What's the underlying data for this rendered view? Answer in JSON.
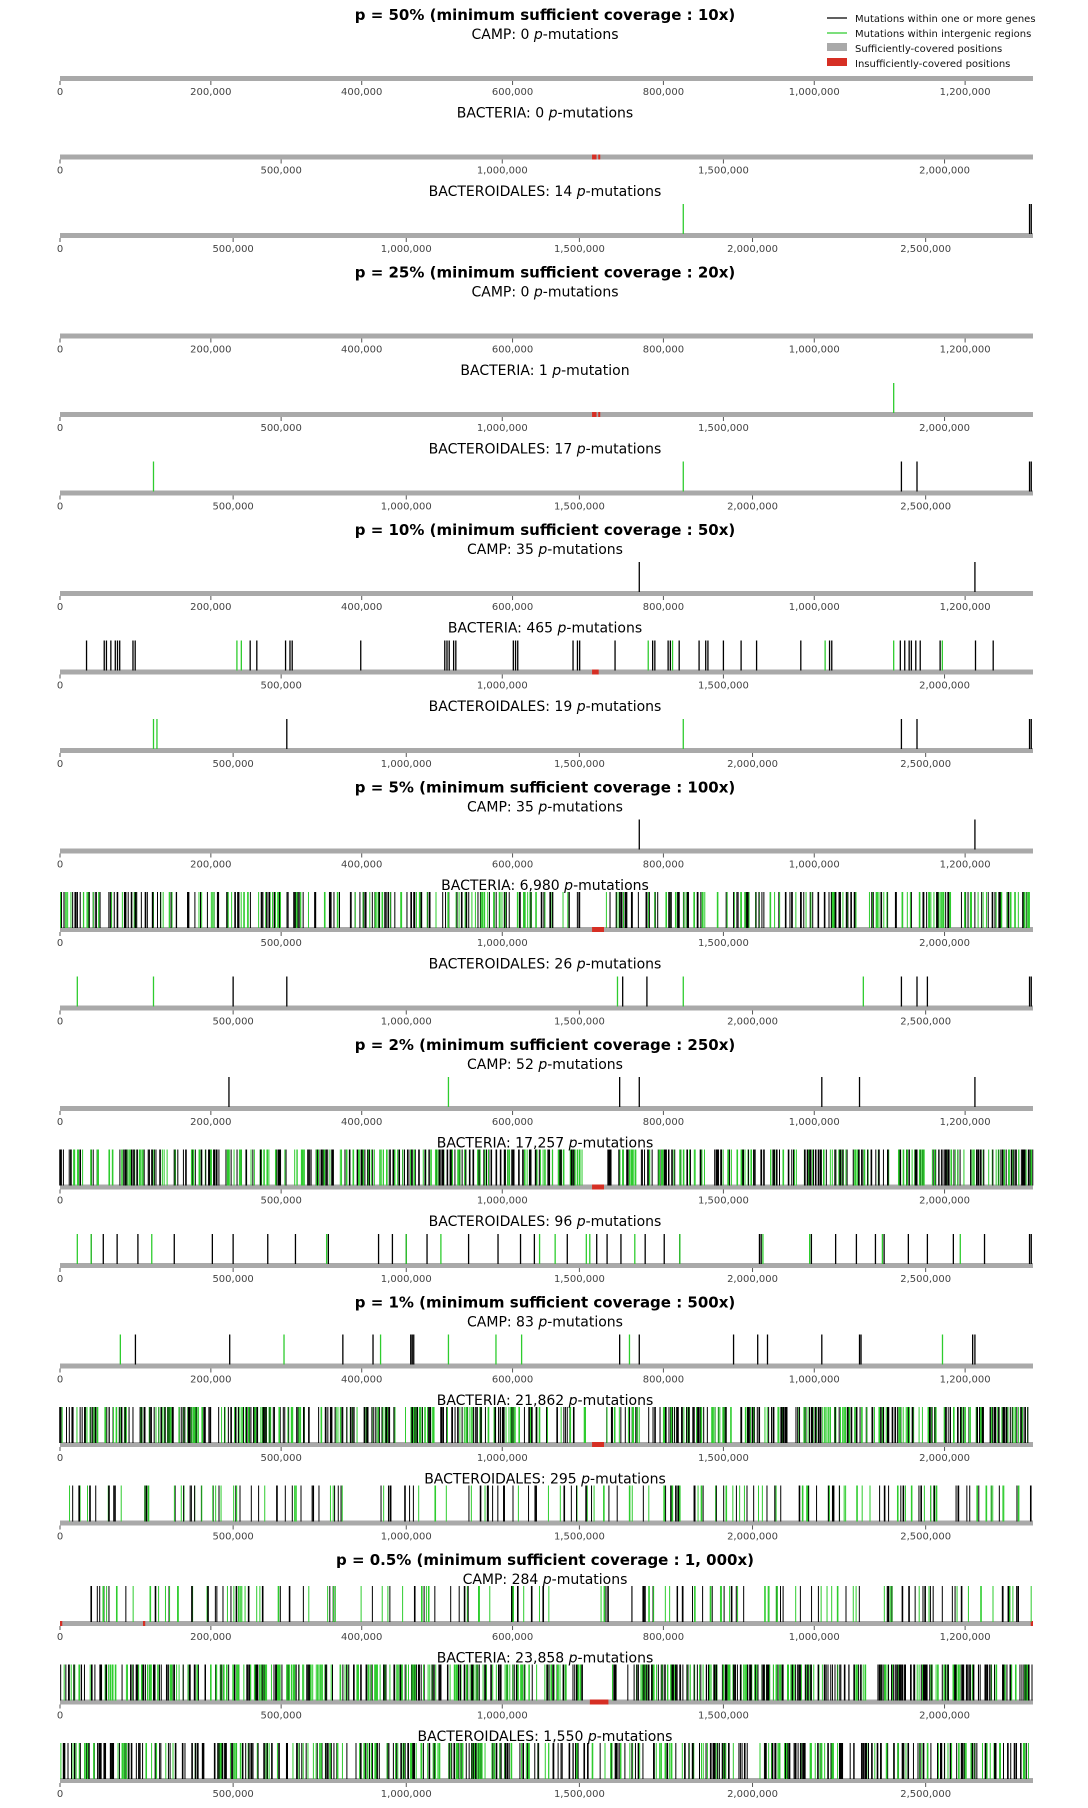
{
  "colors": {
    "gene": "#000000",
    "intergenic": "#2ecc2e",
    "covered": "#a9a9a9",
    "uncovered": "#d62f24"
  },
  "legend": {
    "gene": "Mutations within one or more genes",
    "intergenic": "Mutations within intergenic regions",
    "covered": "Sufficiently-covered positions",
    "uncovered": "Insufficiently-covered positions"
  },
  "genomes": {
    "CAMP": {
      "length": 1290000,
      "ticks": [
        "0",
        "200,000",
        "400,000",
        "600,000",
        "800,000",
        "1,000,000",
        "1,200,000"
      ],
      "tick_values": [
        0,
        200000,
        400000,
        600000,
        800000,
        1000000,
        1200000
      ]
    },
    "BACTERIA": {
      "length": 2200000,
      "ticks": [
        "0",
        "500,000",
        "1,000,000",
        "1,500,000",
        "2,000,000"
      ],
      "tick_values": [
        0,
        500000,
        1000000,
        1500000,
        2000000
      ]
    },
    "BACTEROIDALES": {
      "length": 2810000,
      "ticks": [
        "0",
        "500,000",
        "1,000,000",
        "1,500,000",
        "2,000,000",
        "2,500,000"
      ],
      "tick_values": [
        0,
        500000,
        1000000,
        1500000,
        2000000,
        2500000
      ]
    }
  },
  "chart_data": {
    "type": "genome mutation tracks",
    "sections": [
      {
        "title": "p = 50% (minimum sufficient coverage :  10x)",
        "tracks": [
          {
            "genome": "CAMP",
            "label": "CAMP: 0 p-mutations",
            "gene_mutations": [],
            "intergenic_mutations": [],
            "uncovered_regions": []
          },
          {
            "genome": "BACTERIA",
            "label": "BACTERIA: 0 p-mutations",
            "gene_mutations": [],
            "intergenic_mutations": [],
            "uncovered_regions": [
              [
                1203000,
                1213000
              ],
              [
                1217000,
                1221000
              ]
            ]
          },
          {
            "genome": "BACTEROIDALES",
            "label": "BACTEROIDALES: 14 p-mutations",
            "gene_mutations": [
              2800000,
              2805000
            ],
            "intergenic_mutations": [
              1800000
            ],
            "uncovered_regions": []
          }
        ]
      },
      {
        "title": "p = 25% (minimum sufficient coverage :  20x)",
        "tracks": [
          {
            "genome": "CAMP",
            "label": "CAMP: 0 p-mutations",
            "gene_mutations": [],
            "intergenic_mutations": [],
            "uncovered_regions": []
          },
          {
            "genome": "BACTERIA",
            "label": "BACTERIA: 1 p-mutation",
            "gene_mutations": [],
            "intergenic_mutations": [
              1885000
            ],
            "uncovered_regions": [
              [
                1203000,
                1213000
              ],
              [
                1217000,
                1221000
              ]
            ]
          },
          {
            "genome": "BACTEROIDALES",
            "label": "BACTEROIDALES: 17 p-mutations",
            "gene_mutations": [
              2430000,
              2475000,
              2800000,
              2805000
            ],
            "intergenic_mutations": [
              270000,
              1800000
            ],
            "uncovered_regions": []
          }
        ]
      },
      {
        "title": "p = 10% (minimum sufficient coverage :  50x)",
        "tracks": [
          {
            "genome": "CAMP",
            "label": "CAMP: 35 p-mutations",
            "gene_mutations": [
              768000,
              1213000
            ],
            "intergenic_mutations": [],
            "uncovered_regions": []
          },
          {
            "genome": "BACTERIA",
            "label": "BACTERIA: 465 p-mutations",
            "gene_mutations": [
              60000,
              100000,
              105000,
              115000,
              125000,
              130000,
              135000,
              165000,
              170000,
              430000,
              445000,
              510000,
              520000,
              525000,
              680000,
              870000,
              875000,
              880000,
              890000,
              895000,
              1025000,
              1030000,
              1035000,
              1160000,
              1170000,
              1175000,
              1255000,
              1340000,
              1345000,
              1375000,
              1380000,
              1400000,
              1445000,
              1460000,
              1465000,
              1500000,
              1540000,
              1575000,
              1675000,
              1740000,
              1745000,
              1900000,
              1910000,
              1920000,
              1925000,
              1935000,
              1945000,
              1990000,
              2070000,
              2110000
            ],
            "intergenic_mutations": [
              400000,
              410000,
              1330000,
              1385000,
              1730000,
              1885000,
              1995000
            ],
            "uncovered_regions": [
              [
                1203000,
                1218000
              ]
            ]
          },
          {
            "genome": "BACTEROIDALES",
            "label": "BACTEROIDALES: 19 p-mutations",
            "gene_mutations": [
              655000,
              2430000,
              2475000,
              2800000,
              2805000
            ],
            "intergenic_mutations": [
              270000,
              280000,
              1800000
            ],
            "uncovered_regions": []
          }
        ]
      },
      {
        "title": "p = 5% (minimum sufficient coverage :  100x)",
        "tracks": [
          {
            "genome": "CAMP",
            "label": "CAMP: 35 p-mutations",
            "gene_mutations": [
              768000,
              1213000
            ],
            "intergenic_mutations": [],
            "uncovered_regions": []
          },
          {
            "genome": "BACTERIA",
            "label": "BACTERIA: 6,980 p-mutations",
            "dense": true,
            "density": 0.45,
            "gaps": [
              [
                1180000,
                1235000
              ],
              [
                1810000,
                1830000
              ],
              [
                2020000,
                2035000
              ]
            ],
            "uncovered_regions": [
              [
                1203000,
                1230000
              ]
            ]
          },
          {
            "genome": "BACTEROIDALES",
            "label": "BACTEROIDALES: 26 p-mutations",
            "gene_mutations": [
              500000,
              655000,
              1625000,
              1695000,
              2430000,
              2475000,
              2505000,
              2800000,
              2805000
            ],
            "intergenic_mutations": [
              50000,
              270000,
              1610000,
              1800000,
              2320000
            ],
            "uncovered_regions": []
          }
        ]
      },
      {
        "title": "p = 2% (minimum sufficient coverage :  250x)",
        "tracks": [
          {
            "genome": "CAMP",
            "label": "CAMP: 52 p-mutations",
            "gene_mutations": [
              224000,
              742000,
              768000,
              1010000,
              1060000,
              1213000
            ],
            "intergenic_mutations": [
              515000
            ],
            "uncovered_regions": []
          },
          {
            "genome": "BACTERIA",
            "label": "BACTERIA: 17,257 p-mutations",
            "dense": true,
            "density": 0.55,
            "gaps": [
              [
                1185000,
                1235000
              ],
              [
                1780000,
                1790000
              ]
            ],
            "uncovered_regions": [
              [
                1203000,
                1230000
              ]
            ]
          },
          {
            "genome": "BACTEROIDALES",
            "label": "BACTEROIDALES: 96 p-mutations",
            "gene_mutations": [
              90000,
              125000,
              165000,
              225000,
              330000,
              440000,
              500000,
              600000,
              680000,
              775000,
              920000,
              960000,
              1000000,
              1060000,
              1180000,
              1265000,
              1330000,
              1370000,
              1465000,
              1550000,
              1580000,
              1620000,
              1690000,
              1745000,
              1790000,
              2020000,
              2025000,
              2170000,
              2240000,
              2300000,
              2355000,
              2380000,
              2450000,
              2505000,
              2580000,
              2670000,
              2800000,
              2805000
            ],
            "intergenic_mutations": [
              50000,
              90000,
              265000,
              770000,
              1000000,
              1100000,
              1385000,
              1430000,
              1520000,
              1530000,
              1660000,
              1790000,
              2030000,
              2165000,
              2375000,
              2600000
            ],
            "uncovered_regions": []
          }
        ]
      },
      {
        "title": "p = 1% (minimum sufficient coverage :  500x)",
        "tracks": [
          {
            "genome": "CAMP",
            "label": "CAMP: 83 p-mutations",
            "gene_mutations": [
              100000,
              225000,
              375000,
              415000,
              465000,
              467000,
              469000,
              742000,
              768000,
              893000,
              925000,
              938000,
              1010000,
              1060000,
              1062000,
              1210000,
              1213000
            ],
            "intergenic_mutations": [
              80000,
              297000,
              425000,
              515000,
              578000,
              612000,
              755000,
              1170000
            ],
            "uncovered_regions": []
          },
          {
            "genome": "BACTERIA",
            "label": "BACTERIA: 21,862 p-mutations",
            "dense": true,
            "density": 0.6,
            "gaps": [
              [
                1190000,
                1235000
              ],
              [
                1825000,
                1835000
              ],
              [
                2015000,
                2020000
              ]
            ],
            "uncovered_regions": [
              [
                1203000,
                1230000
              ]
            ]
          },
          {
            "genome": "BACTEROIDALES",
            "label": "BACTEROIDALES: 295 p-mutations",
            "dense": true,
            "density": 0.2,
            "gaps": [
              [
                820000,
                920000
              ]
            ],
            "uncovered_regions": []
          }
        ]
      },
      {
        "title": "p = 0.5% (minimum sufficient coverage :  1, 000x)",
        "tracks": [
          {
            "genome": "CAMP",
            "label": "CAMP: 284 p-mutations",
            "dense": true,
            "density": 0.18,
            "gaps": [
              [
                650000,
                700000
              ]
            ],
            "uncovered_regions": [
              [
                0,
                3000
              ],
              [
                110000,
                113000
              ],
              [
                1287000,
                1290000
              ]
            ]
          },
          {
            "genome": "BACTERIA",
            "label": "BACTERIA: 23,858 p-mutations",
            "dense": true,
            "density": 0.65,
            "gaps": [
              [
                1185000,
                1245000
              ],
              [
                1822000,
                1835000
              ]
            ],
            "uncovered_regions": [
              [
                1198000,
                1240000
              ]
            ]
          },
          {
            "genome": "BACTEROIDALES",
            "label": "BACTEROIDALES: 1,550 p-mutations",
            "dense": true,
            "density": 0.5,
            "gaps": [],
            "uncovered_regions": []
          }
        ]
      }
    ]
  }
}
